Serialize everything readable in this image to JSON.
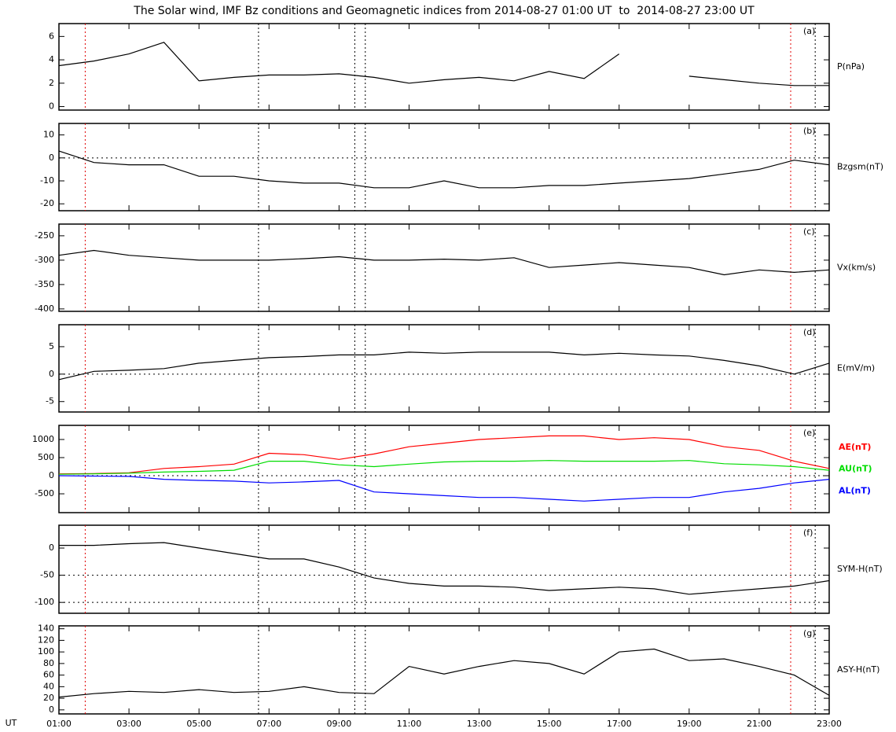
{
  "title": "The Solar wind, IMF Bz conditions and Geomagnetic indices from 2014-08-27 01:00 UT  to  2014-08-27 23:00 UT",
  "x_label": "UT",
  "event_lines": [
    {
      "x": 1.75,
      "color": "#e00000"
    },
    {
      "x": 6.7,
      "color": "#000000"
    },
    {
      "x": 9.45,
      "color": "#000000"
    },
    {
      "x": 9.75,
      "color": "#000000"
    },
    {
      "x": 21.9,
      "color": "#e00000"
    },
    {
      "x": 22.6,
      "color": "#000000"
    }
  ],
  "chart_data": [
    {
      "type": "line",
      "label": "(a)",
      "ylabel": "P(nPa)",
      "xlim": [
        1,
        23
      ],
      "ylim": [
        -0.3,
        7.1
      ],
      "yticks": [
        0,
        2,
        4,
        6
      ],
      "reflines": [],
      "x": [
        1,
        2,
        3,
        4,
        5,
        6,
        7,
        8,
        9,
        10,
        11,
        12,
        13,
        14,
        15,
        16,
        17,
        18,
        19,
        20,
        21,
        22,
        23
      ],
      "series": [
        {
          "color": "#000000",
          "values": [
            3.5,
            3.9,
            4.5,
            5.5,
            2.2,
            2.5,
            2.7,
            2.7,
            2.8,
            2.5,
            2.0,
            2.3,
            2.5,
            2.2,
            3.0,
            2.4,
            4.5,
            null,
            2.6,
            2.3,
            2.0,
            1.8,
            1.8
          ]
        }
      ]
    },
    {
      "type": "line",
      "label": "(b)",
      "ylabel": "Bzgsm(nT)",
      "xlim": [
        1,
        23
      ],
      "ylim": [
        -23,
        15
      ],
      "yticks": [
        -20,
        -10,
        0,
        10
      ],
      "reflines": [
        0
      ],
      "x": [
        1,
        2,
        3,
        4,
        5,
        6,
        7,
        8,
        9,
        10,
        11,
        12,
        13,
        14,
        15,
        16,
        17,
        18,
        19,
        20,
        21,
        22,
        23
      ],
      "series": [
        {
          "color": "#000000",
          "values": [
            3,
            -2,
            -3,
            -3,
            -8,
            -8,
            -10,
            -11,
            -11,
            -13,
            -13,
            -10,
            -13,
            -13,
            -12,
            -12,
            -11,
            -10,
            -9,
            -7,
            -5,
            -1,
            -3
          ]
        }
      ]
    },
    {
      "type": "line",
      "label": "(c)",
      "ylabel": "Vx(km/s)",
      "xlim": [
        1,
        23
      ],
      "ylim": [
        -405,
        -226
      ],
      "yticks": [
        -400,
        -350,
        -300,
        -250
      ],
      "reflines": [],
      "x": [
        1,
        2,
        3,
        4,
        5,
        6,
        7,
        8,
        9,
        10,
        11,
        12,
        13,
        14,
        15,
        16,
        17,
        18,
        19,
        20,
        21,
        22,
        23
      ],
      "series": [
        {
          "color": "#000000",
          "values": [
            -290,
            -280,
            -290,
            -295,
            -300,
            -300,
            -300,
            -297,
            -293,
            -300,
            -300,
            -298,
            -300,
            -295,
            -315,
            -310,
            -305,
            -310,
            -315,
            -330,
            -320,
            -325,
            -320
          ]
        }
      ]
    },
    {
      "type": "line",
      "label": "(d)",
      "ylabel": "E(mV/m)",
      "xlim": [
        1,
        23
      ],
      "ylim": [
        -6.9,
        9
      ],
      "yticks": [
        -5,
        0,
        5
      ],
      "reflines": [
        0
      ],
      "x": [
        1,
        2,
        3,
        4,
        5,
        6,
        7,
        8,
        9,
        10,
        11,
        12,
        13,
        14,
        15,
        16,
        17,
        18,
        19,
        20,
        21,
        22,
        23
      ],
      "series": [
        {
          "color": "#000000",
          "values": [
            -1,
            0.5,
            0.7,
            1,
            2,
            2.5,
            3,
            3.2,
            3.5,
            3.5,
            4,
            3.8,
            4,
            4,
            4,
            3.5,
            3.8,
            3.5,
            3.3,
            2.5,
            1.5,
            0,
            2
          ]
        }
      ]
    },
    {
      "type": "line",
      "label": "(e)",
      "xlim": [
        1,
        23
      ],
      "ylim": [
        -1020,
        1390
      ],
      "yticks": [
        -500,
        0,
        500,
        1000
      ],
      "reflines": [
        0
      ],
      "x": [
        1,
        2,
        3,
        4,
        5,
        6,
        7,
        8,
        9,
        10,
        11,
        12,
        13,
        14,
        15,
        16,
        17,
        18,
        19,
        20,
        21,
        22,
        23
      ],
      "series": [
        {
          "name": "AE(nT)",
          "color": "#ff0000",
          "values": [
            50,
            60,
            80,
            200,
            250,
            320,
            620,
            580,
            450,
            600,
            800,
            900,
            1000,
            1050,
            1100,
            1100,
            1000,
            1050,
            1000,
            800,
            700,
            400,
            200
          ]
        },
        {
          "name": "AU(nT)",
          "color": "#00dd00",
          "values": [
            40,
            50,
            70,
            100,
            120,
            150,
            400,
            400,
            300,
            250,
            320,
            380,
            400,
            400,
            420,
            400,
            400,
            400,
            420,
            330,
            300,
            250,
            150
          ]
        },
        {
          "name": "AL(nT)",
          "color": "#0000ff",
          "values": [
            0,
            -10,
            -20,
            -100,
            -130,
            -150,
            -200,
            -170,
            -130,
            -450,
            -500,
            -550,
            -600,
            -600,
            -650,
            -700,
            -650,
            -600,
            -600,
            -450,
            -350,
            -200,
            -100
          ]
        }
      ]
    },
    {
      "type": "line",
      "label": "(f)",
      "ylabel": "SYM-H(nT)",
      "xlim": [
        1,
        23
      ],
      "ylim": [
        -120,
        42
      ],
      "yticks": [
        -100,
        -50,
        0
      ],
      "reflines": [
        -50,
        -100
      ],
      "x": [
        1,
        2,
        3,
        4,
        5,
        6,
        7,
        8,
        9,
        10,
        11,
        12,
        13,
        14,
        15,
        16,
        17,
        18,
        19,
        20,
        21,
        22,
        23
      ],
      "series": [
        {
          "color": "#000000",
          "values": [
            5,
            5,
            8,
            10,
            0,
            -10,
            -20,
            -20,
            -35,
            -55,
            -65,
            -70,
            -70,
            -72,
            -78,
            -75,
            -72,
            -75,
            -85,
            -80,
            -75,
            -70,
            -60
          ]
        }
      ]
    },
    {
      "type": "line",
      "label": "(g)",
      "ylabel": "ASY-H(nT)",
      "xlim": [
        1,
        23
      ],
      "ylim": [
        -7,
        145
      ],
      "yticks": [
        0,
        20,
        40,
        60,
        80,
        100,
        120,
        140
      ],
      "reflines": [],
      "xticks": [
        {
          "value": 1,
          "label": "01:00"
        },
        {
          "value": 3,
          "label": "03:00"
        },
        {
          "value": 5,
          "label": "05:00"
        },
        {
          "value": 7,
          "label": "07:00"
        },
        {
          "value": 9,
          "label": "09:00"
        },
        {
          "value": 11,
          "label": "11:00"
        },
        {
          "value": 13,
          "label": "13:00"
        },
        {
          "value": 15,
          "label": "15:00"
        },
        {
          "value": 17,
          "label": "17:00"
        },
        {
          "value": 19,
          "label": "19:00"
        },
        {
          "value": 21,
          "label": "21:00"
        },
        {
          "value": 23,
          "label": "23:00"
        }
      ],
      "x": [
        1,
        2,
        3,
        4,
        5,
        6,
        7,
        8,
        9,
        10,
        11,
        12,
        13,
        14,
        15,
        16,
        17,
        18,
        19,
        20,
        21,
        22,
        23
      ],
      "series": [
        {
          "color": "#000000",
          "values": [
            22,
            28,
            32,
            30,
            35,
            30,
            32,
            40,
            30,
            28,
            75,
            62,
            75,
            85,
            80,
            62,
            100,
            105,
            85,
            88,
            75,
            60,
            25
          ]
        }
      ]
    }
  ]
}
